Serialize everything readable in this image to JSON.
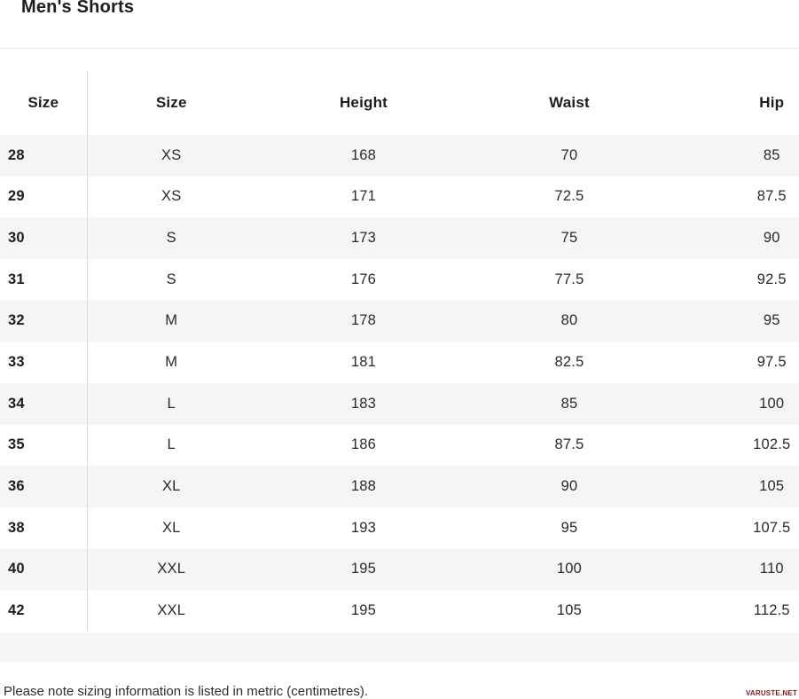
{
  "page": {
    "title": "Men's Shorts",
    "footer_note": "Please note sizing information is listed in metric (centimetres).",
    "watermark": "VARUSTE.NET"
  },
  "table": {
    "columns": [
      "Size",
      "Size",
      "Height",
      "Waist",
      "Hip"
    ],
    "rows": [
      [
        "28",
        "XS",
        "168",
        "70",
        "85"
      ],
      [
        "29",
        "XS",
        "171",
        "72.5",
        "87.5"
      ],
      [
        "30",
        "S",
        "173",
        "75",
        "90"
      ],
      [
        "31",
        "S",
        "176",
        "77.5",
        "92.5"
      ],
      [
        "32",
        "M",
        "178",
        "80",
        "95"
      ],
      [
        "33",
        "M",
        "181",
        "82.5",
        "97.5"
      ],
      [
        "34",
        "L",
        "183",
        "85",
        "100"
      ],
      [
        "35",
        "L",
        "186",
        "87.5",
        "102.5"
      ],
      [
        "36",
        "XL",
        "188",
        "90",
        "105"
      ],
      [
        "38",
        "XL",
        "193",
        "95",
        "107.5"
      ],
      [
        "40",
        "XXL",
        "195",
        "100",
        "110"
      ],
      [
        "42",
        "XXL",
        "195",
        "105",
        "112.5"
      ]
    ]
  },
  "colors": {
    "row_stripe": "#f5f5f6",
    "divider": "#dcdcdc",
    "top_rule": "#e8e8e8",
    "heading_text": "#1d1d1f",
    "body_text": "#2a2a2c",
    "watermark_red": "#7a1f1c"
  }
}
